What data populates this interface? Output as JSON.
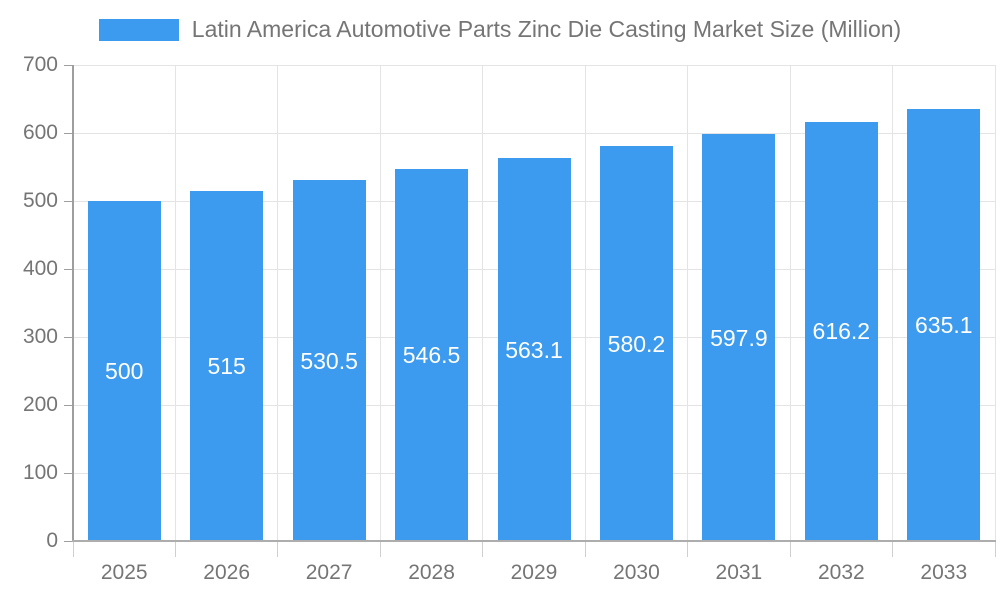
{
  "chart_data": {
    "type": "bar",
    "title": "Latin America Automotive Parts Zinc Die Casting Market Size (Million)",
    "categories": [
      "2025",
      "2026",
      "2027",
      "2028",
      "2029",
      "2030",
      "2031",
      "2032",
      "2033"
    ],
    "values": [
      500,
      515,
      530.5,
      546.5,
      563.1,
      580.2,
      597.9,
      616.2,
      635.1
    ],
    "bar_labels": [
      "500",
      "515",
      "530.5",
      "546.5",
      "563.1",
      "580.2",
      "597.9",
      "616.2",
      "635.1"
    ],
    "xlabel": "",
    "ylabel": "",
    "ylim": [
      0,
      700
    ],
    "ytick_step": 100,
    "yticks": [
      "0",
      "100",
      "200",
      "300",
      "400",
      "500",
      "600",
      "700"
    ],
    "grid": true,
    "legend_position": "top-center",
    "colors": {
      "bar": "#3C9BEE",
      "axis_text": "#757575",
      "grid_line": "#E4E4E4",
      "axis_line": "#9E9E9E",
      "bar_label_text": "#FFFFFF",
      "background": "#FFFFFF"
    }
  }
}
